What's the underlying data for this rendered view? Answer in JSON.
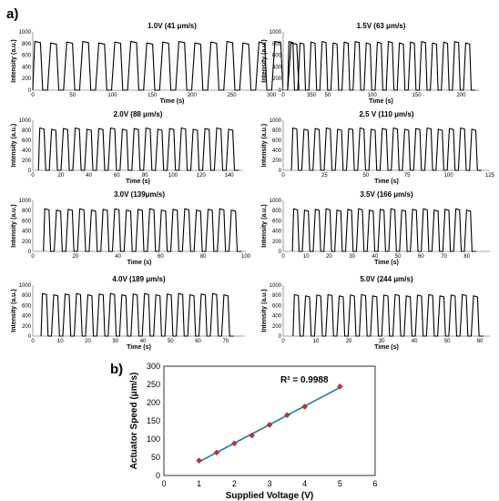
{
  "figure": {
    "panel_a_label": "a)",
    "panel_b_label": "b)"
  },
  "chart_data": [
    {
      "type": "line",
      "title": "1.0V (41 μm/s)",
      "xlabel": "Time (s)",
      "ylabel": "Intensity (a.u.)",
      "xlim": [
        0,
        350
      ],
      "ylim": [
        0,
        1000
      ],
      "xticks": [
        0,
        50,
        100,
        150,
        200,
        250,
        300,
        350
      ],
      "yticks": [
        0,
        200,
        400,
        600,
        800,
        1000
      ],
      "cycles": 17,
      "peak_intensity": 820,
      "trough_intensity": 0,
      "signal_start": 0,
      "signal_end": 342,
      "series_color": "#000000"
    },
    {
      "type": "line",
      "title": "1.5V (63 μm/s)",
      "xlabel": "Time (s)",
      "ylabel": "Intensity (a.u.)",
      "xlim": [
        0,
        220
      ],
      "ylim": [
        0,
        1000
      ],
      "xticks": [
        0,
        50,
        100,
        150,
        200
      ],
      "yticks": [
        0,
        200,
        400,
        600,
        800,
        1000
      ],
      "cycles": 17,
      "peak_intensity": 820,
      "trough_intensity": 0,
      "signal_start": 5,
      "signal_end": 216,
      "series_color": "#000000"
    },
    {
      "type": "line",
      "title": "2.0V (88 μm/s)",
      "xlabel": "Time (s)",
      "ylabel": "Intensity (a.u.)",
      "xlim": [
        0,
        150
      ],
      "ylim": [
        0,
        1000
      ],
      "xticks": [
        0,
        20,
        40,
        60,
        80,
        100,
        120,
        140
      ],
      "yticks": [
        0,
        200,
        400,
        600,
        800,
        1000
      ],
      "cycles": 17,
      "peak_intensity": 830,
      "trough_intensity": 0,
      "signal_start": 4,
      "signal_end": 147,
      "series_color": "#000000"
    },
    {
      "type": "line",
      "title": "2.5 V (110 μm/s)",
      "xlabel": "Time (s)",
      "ylabel": "Intensity (a.u.)",
      "xlim": [
        0,
        125
      ],
      "ylim": [
        0,
        1000
      ],
      "xticks": [
        0,
        25,
        50,
        75,
        100,
        125
      ],
      "yticks": [
        0,
        200,
        400,
        600,
        800,
        1000
      ],
      "cycles": 17,
      "peak_intensity": 830,
      "trough_intensity": 0,
      "signal_start": 5,
      "signal_end": 120,
      "series_color": "#000000"
    },
    {
      "type": "line",
      "title": "3.0V (139μm/s)",
      "xlabel": "Time (s)",
      "ylabel": "Intensity (a.u.)",
      "xlim": [
        0,
        100
      ],
      "ylim": [
        0,
        1000
      ],
      "xticks": [
        0,
        20,
        40,
        60,
        80,
        100
      ],
      "yticks": [
        0,
        200,
        400,
        600,
        800,
        1000
      ],
      "cycles": 17,
      "peak_intensity": 820,
      "trough_intensity": 0,
      "signal_start": 5,
      "signal_end": 98,
      "series_color": "#000000"
    },
    {
      "type": "line",
      "title": "3.5V (166 μm/s)",
      "xlabel": "Time (s)",
      "ylabel": "Intensity (a.u.)",
      "xlim": [
        0,
        90
      ],
      "ylim": [
        0,
        1000
      ],
      "xticks": [
        0,
        10,
        20,
        30,
        40,
        50,
        60,
        70,
        80
      ],
      "yticks": [
        0,
        200,
        400,
        600,
        800,
        1000
      ],
      "cycles": 17,
      "peak_intensity": 820,
      "trough_intensity": 0,
      "signal_start": 4,
      "signal_end": 84,
      "series_color": "#000000"
    },
    {
      "type": "line",
      "title": "4.0V (189 μm/s)",
      "xlabel": "Time (s)",
      "ylabel": "Intensity (a.u.)",
      "xlim": [
        0,
        77
      ],
      "ylim": [
        0,
        1000
      ],
      "xticks": [
        0,
        10,
        20,
        30,
        40,
        50,
        60,
        70
      ],
      "yticks": [
        0,
        200,
        400,
        600,
        800,
        1000
      ],
      "cycles": 17,
      "peak_intensity": 820,
      "trough_intensity": 0,
      "signal_start": 3,
      "signal_end": 73,
      "series_color": "#000000"
    },
    {
      "type": "line",
      "title": "5.0V (244 μm/s)",
      "xlabel": "Time (s)",
      "ylabel": "Intensity (a.u.)",
      "xlim": [
        0,
        63
      ],
      "ylim": [
        0,
        1000
      ],
      "xticks": [
        0,
        10,
        20,
        30,
        40,
        50,
        60
      ],
      "yticks": [
        0,
        200,
        400,
        600,
        800,
        1000
      ],
      "cycles": 17,
      "peak_intensity": 800,
      "trough_intensity": 0,
      "signal_start": 3,
      "signal_end": 61,
      "series_color": "#000000"
    },
    {
      "type": "scatter",
      "title": "",
      "xlabel": "Supplied Voltage (V)",
      "ylabel": "Actuator Speed (μm/s)",
      "xlim": [
        0,
        6
      ],
      "ylim": [
        0,
        300
      ],
      "xticks": [
        0,
        1,
        2,
        3,
        4,
        5,
        6
      ],
      "yticks": [
        0,
        50,
        100,
        150,
        200,
        250,
        300
      ],
      "x": [
        1.0,
        1.5,
        2.0,
        2.5,
        3.0,
        3.5,
        4.0,
        5.0
      ],
      "y": [
        41,
        63,
        88,
        110,
        139,
        166,
        189,
        244
      ],
      "marker_color": "#c0392b",
      "fit_color": "#1f77b4",
      "annotation": "R² = 0.9988"
    }
  ]
}
